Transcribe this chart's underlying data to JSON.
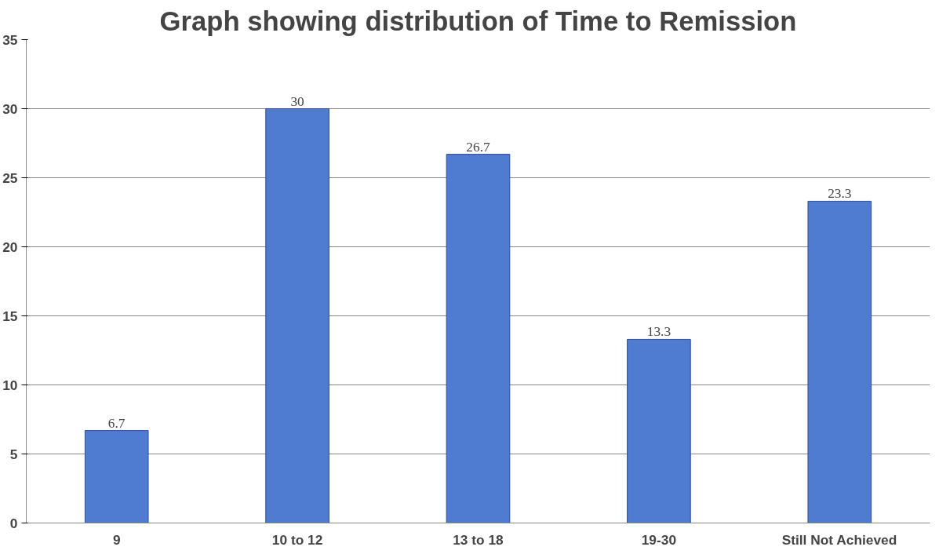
{
  "chart_data": {
    "type": "bar",
    "title": "Graph showing distribution of Time to Remission",
    "categories": [
      "9",
      "10 to 12",
      "13 to 18",
      "19-30",
      "Still Not Achieved"
    ],
    "values": [
      6.7,
      30,
      26.7,
      13.3,
      23.3
    ],
    "color": "#4f7bd0",
    "ylim": [
      0,
      35
    ],
    "yticks": [
      0,
      5,
      10,
      15,
      20,
      25,
      30,
      35
    ],
    "grid": "y",
    "data_labels": true
  }
}
